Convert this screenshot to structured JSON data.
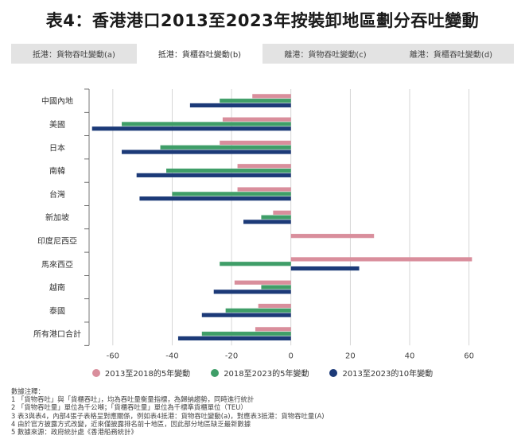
{
  "title": "表4：香港港口2013至2023年按裝卸地區劃分吞吐變動",
  "tabs": [
    {
      "label": "抵港：貨物吞吐變動(a)",
      "active": false
    },
    {
      "label": "抵港：貨櫃吞吐變動(b)",
      "active": true
    },
    {
      "label": "離港：貨物吞吐變動(c)",
      "active": false
    },
    {
      "label": "離港：貨櫃吞吐變動(d)",
      "active": false
    }
  ],
  "colors": {
    "s1": "#d98e9c",
    "s2": "#3f9e68",
    "s3": "#1c3a78",
    "grid": "#cccccc",
    "axis": "#555555"
  },
  "chart_data": {
    "type": "bar",
    "orientation": "horizontal",
    "title": "",
    "xlabel": "",
    "ylabel": "",
    "xlim": [
      -68,
      66
    ],
    "xticks": [
      -60,
      -40,
      -20,
      0,
      20,
      40,
      60
    ],
    "grid": true,
    "legend_position": "bottom",
    "categories": [
      "中國內地",
      "美國",
      "日本",
      "南韓",
      "台灣",
      "新加坡",
      "印度尼西亞",
      "馬來西亞",
      "越南",
      "泰國",
      "所有港口合計"
    ],
    "series": [
      {
        "name": "2013至2018的5年變動",
        "color": "#d98e9c",
        "values": [
          -13,
          -23,
          -24,
          -18,
          -18,
          -6,
          28,
          61,
          -19,
          -11,
          -12
        ]
      },
      {
        "name": "2018至2023的5年變動",
        "color": "#3f9e68",
        "values": [
          -24,
          -57,
          -44,
          -42,
          -40,
          -10,
          0,
          -24,
          -10,
          -22,
          -30
        ]
      },
      {
        "name": "2013至2023的10年變動",
        "color": "#1c3a78",
        "values": [
          -34,
          -67,
          -57,
          -52,
          -51,
          -16,
          0,
          23,
          -26,
          -30,
          -38
        ]
      }
    ]
  },
  "legend": [
    {
      "label": "2013至2018的5年變動",
      "color": "#d98e9c"
    },
    {
      "label": "2018至2023的5年變動",
      "color": "#3f9e68"
    },
    {
      "label": "2013至2023的10年變動",
      "color": "#1c3a78"
    }
  ],
  "notes": {
    "heading": "數據注釋：",
    "lines": [
      "1 「貨物吞吐」與「貨櫃吞吐」，均為吞吐量衡量指標，為歸納趨勢，同時進行統計",
      "2 「貨物吞吐量」單位為千公噸；「貨櫃吞吐量」單位為千標準貨櫃單位（TEU）",
      "3 表3與表4，內部4張子表格呈對應關係，例如表4抵港：貨物吞吐變動(a)，對應表3抵港：貨物吞吐量(A)",
      "4 由於官方披露方式改變，近來僅披露排名前十地區，因此部分地區缺乏最新數據",
      "5 數據來源：政府統計處《香港船務統計》"
    ]
  }
}
